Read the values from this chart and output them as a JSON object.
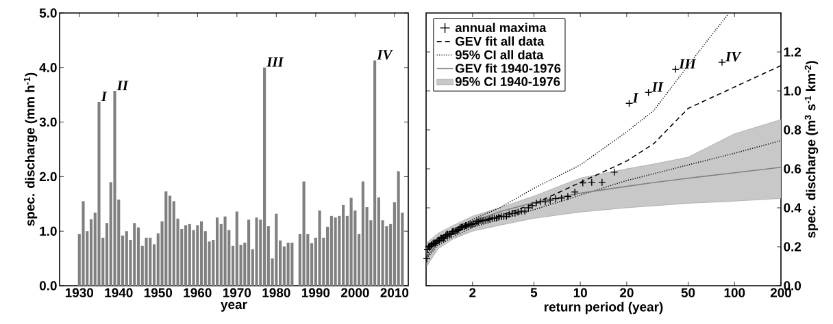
{
  "chart_data": [
    {
      "type": "bar",
      "xlabel": "year",
      "ylabel": "spec. discharge (mm h$^{-1}$)",
      "x": [
        1930,
        1931,
        1932,
        1933,
        1934,
        1935,
        1936,
        1937,
        1938,
        1939,
        1940,
        1941,
        1942,
        1943,
        1944,
        1945,
        1946,
        1947,
        1948,
        1949,
        1950,
        1951,
        1952,
        1953,
        1954,
        1955,
        1956,
        1957,
        1958,
        1959,
        1960,
        1961,
        1962,
        1963,
        1964,
        1965,
        1966,
        1967,
        1968,
        1969,
        1970,
        1971,
        1972,
        1973,
        1974,
        1975,
        1976,
        1977,
        1978,
        1979,
        1980,
        1981,
        1982,
        1983,
        1984,
        1985,
        1986,
        1987,
        1988,
        1989,
        1990,
        1991,
        1992,
        1993,
        1994,
        1995,
        1996,
        1997,
        1998,
        1999,
        2000,
        2001,
        2002,
        2003,
        2004,
        2005,
        2006,
        2007,
        2008,
        2009,
        2010,
        2011,
        2012
      ],
      "values": [
        0.95,
        1.55,
        1.0,
        1.22,
        1.34,
        3.37,
        0.88,
        1.15,
        1.9,
        3.57,
        1.58,
        0.92,
        1.0,
        0.84,
        1.15,
        1.07,
        0.73,
        0.88,
        0.88,
        0.76,
        0.96,
        1.18,
        1.73,
        1.65,
        1.55,
        1.23,
        1.04,
        1.11,
        1.13,
        1.02,
        1.11,
        1.18,
        1.0,
        0.81,
        0.84,
        1.25,
        1.13,
        1.27,
        1.02,
        0.73,
        1.36,
        0.75,
        0.79,
        1.21,
        0.67,
        1.25,
        1.21,
        4.0,
        1.09,
        0.5,
        1.32,
        0.83,
        0.72,
        0.79,
        0.79,
        null,
        0.95,
        1.91,
        0.95,
        0.78,
        0.88,
        1.38,
        0.88,
        1.08,
        1.28,
        1.25,
        1.28,
        1.48,
        1.28,
        1.61,
        1.38,
        0.95,
        1.91,
        1.44,
        1.2,
        4.13,
        1.62,
        1.2,
        1.09,
        1.13,
        1.53,
        2.1,
        1.34
      ],
      "color": "#808080",
      "xlim": [
        1925,
        2013.5
      ],
      "xticks": [
        1930,
        1940,
        1950,
        1960,
        1970,
        1980,
        1990,
        2000,
        2010
      ],
      "ylim": [
        0,
        5
      ],
      "yticks": [
        {
          "value": 0,
          "label": "0.0"
        },
        {
          "value": 1,
          "label": "1.0"
        },
        {
          "value": 2,
          "label": "2.0"
        },
        {
          "value": 3,
          "label": "3.0"
        },
        {
          "value": 4,
          "label": "4.0"
        },
        {
          "value": 5,
          "label": "5.0"
        }
      ],
      "annotations": [
        {
          "text": "I",
          "x": 1935,
          "y": 3.37
        },
        {
          "text": "II",
          "x": 1939,
          "y": 3.57
        },
        {
          "text": "III",
          "x": 1977,
          "y": 4.0
        },
        {
          "text": "IV",
          "x": 2005,
          "y": 4.13
        }
      ]
    },
    {
      "type": "line",
      "xlabel": "return period (year)",
      "ylabel": "spec. discharge (m$^{3}$ s$^{-1}$ km$^{-2}$)",
      "log": "x",
      "legend": "top left",
      "xlim": [
        1,
        200
      ],
      "xticks": [
        2,
        5,
        10,
        20,
        50,
        100,
        200
      ],
      "ylim": [
        0,
        1.4
      ],
      "yticks": [
        {
          "value": 0,
          "label": "0.0"
        },
        {
          "value": 0.2,
          "label": "0.2"
        },
        {
          "value": 0.4,
          "label": "0.4"
        },
        {
          "value": 0.6,
          "label": "0.6"
        },
        {
          "value": 0.8,
          "label": "0.8"
        },
        {
          "value": 1.0,
          "label": "1.0"
        },
        {
          "value": 1.2,
          "label": "1.2"
        }
      ],
      "series": [
        {
          "name": "annual maxima",
          "type": "scatter",
          "marker": "cross",
          "color": "#000000",
          "x": [
            83,
            41.5,
            27.67,
            20.75,
            16.6,
            13.83,
            11.86,
            10.38,
            9.22,
            8.3,
            7.55,
            6.92,
            6.38,
            5.93,
            5.53,
            5.19,
            4.88,
            4.61,
            4.37,
            4.15,
            3.95,
            3.77,
            3.61,
            3.46,
            3.32,
            3.19,
            3.07,
            2.96,
            2.86,
            2.77,
            2.68,
            2.59,
            2.52,
            2.44,
            2.37,
            2.31,
            2.24,
            2.18,
            2.13,
            2.08,
            2.02,
            1.98,
            1.93,
            1.89,
            1.84,
            1.8,
            1.77,
            1.73,
            1.69,
            1.66,
            1.63,
            1.6,
            1.57,
            1.54,
            1.51,
            1.48,
            1.46,
            1.43,
            1.41,
            1.38,
            1.36,
            1.34,
            1.32,
            1.3,
            1.28,
            1.26,
            1.24,
            1.22,
            1.2,
            1.19,
            1.17,
            1.15,
            1.14,
            1.12,
            1.11,
            1.09,
            1.08,
            1.06,
            1.05,
            1.04,
            1.02,
            1.01
          ],
          "values": [
            1.147,
            1.111,
            0.992,
            0.936,
            0.583,
            0.531,
            0.531,
            0.528,
            0.481,
            0.458,
            0.45,
            0.447,
            0.439,
            0.431,
            0.431,
            0.425,
            0.411,
            0.4,
            0.383,
            0.383,
            0.378,
            0.372,
            0.372,
            0.367,
            0.356,
            0.356,
            0.356,
            0.353,
            0.347,
            0.347,
            0.347,
            0.342,
            0.339,
            0.336,
            0.336,
            0.333,
            0.333,
            0.328,
            0.328,
            0.319,
            0.319,
            0.314,
            0.314,
            0.314,
            0.308,
            0.308,
            0.303,
            0.303,
            0.3,
            0.297,
            0.289,
            0.283,
            0.283,
            0.278,
            0.278,
            0.278,
            0.267,
            0.264,
            0.264,
            0.264,
            0.264,
            0.256,
            0.244,
            0.244,
            0.244,
            0.244,
            0.244,
            0.233,
            0.233,
            0.231,
            0.225,
            0.219,
            0.219,
            0.219,
            0.217,
            0.211,
            0.208,
            0.203,
            0.203,
            0.2,
            0.186,
            0.139
          ]
        },
        {
          "name": "GEV fit all data",
          "type": "line",
          "line_style": "dashed",
          "color": "#000000",
          "x": [
            1.01,
            1.2,
            1.5,
            2,
            3,
            5,
            10,
            20,
            30,
            50,
            100,
            200
          ],
          "values": [
            0.15,
            0.22,
            0.27,
            0.315,
            0.36,
            0.42,
            0.53,
            0.64,
            0.73,
            0.91,
            1.02,
            1.13
          ]
        },
        {
          "name": "95% CI all data",
          "type": "line",
          "line_style": "dotted",
          "color": "#000000",
          "x": [
            1.01,
            1.2,
            1.5,
            2,
            3,
            5,
            10,
            20,
            30,
            50,
            70,
            90
          ],
          "values": [
            0.16,
            0.24,
            0.29,
            0.34,
            0.4,
            0.5,
            0.62,
            0.79,
            0.9,
            1.13,
            1.28,
            1.39
          ]
        },
        {
          "type": "line",
          "line_style": "dotted",
          "color": "#000000",
          "x": [
            1.01,
            1.2,
            1.5,
            2,
            3,
            5,
            10,
            20,
            30,
            50,
            100,
            200
          ],
          "values": [
            0.14,
            0.21,
            0.25,
            0.3,
            0.34,
            0.39,
            0.465,
            0.54,
            0.575,
            0.62,
            0.68,
            0.745
          ]
        },
        {
          "name": "GEV fit 1940-1976",
          "type": "line",
          "line_style": "solid",
          "color": "#808080",
          "x": [
            1.01,
            1.2,
            1.5,
            2,
            3,
            5,
            10,
            20,
            30,
            50,
            100,
            200
          ],
          "values": [
            0.15,
            0.22,
            0.27,
            0.33,
            0.38,
            0.427,
            0.475,
            0.51,
            0.53,
            0.552,
            0.58,
            0.608
          ],
          "lower": [
            0.1,
            0.19,
            0.24,
            0.28,
            0.31,
            0.346,
            0.378,
            0.4,
            0.41,
            0.423,
            0.434,
            0.448
          ],
          "upper": [
            0.22,
            0.27,
            0.31,
            0.357,
            0.4,
            0.46,
            0.553,
            0.6,
            0.625,
            0.66,
            0.78,
            0.853
          ]
        },
        {
          "name": "95% CI 1940-1976",
          "type": "area",
          "color": "#c8c8c8"
        }
      ],
      "annotations": [
        {
          "text": "I",
          "x": 20.75,
          "y": 0.936
        },
        {
          "text": "II",
          "x": 27.67,
          "y": 0.992
        },
        {
          "text": "III",
          "x": 41.5,
          "y": 1.111
        },
        {
          "text": "IV",
          "x": 83,
          "y": 1.147
        }
      ]
    }
  ]
}
